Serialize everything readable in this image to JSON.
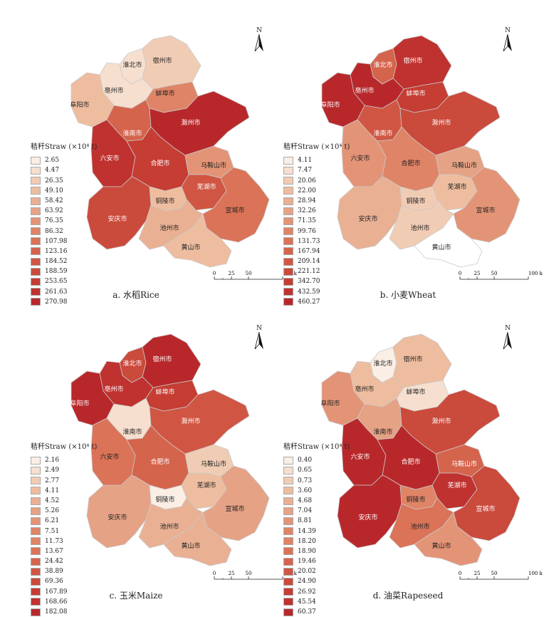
{
  "legend_title": "秸秆Straw (×10⁴ t)",
  "scale_labels": [
    "0",
    "25",
    "50",
    "100 km"
  ],
  "north_label": "N",
  "cities": [
    "淮北市",
    "宿州市",
    "亳州市",
    "蚌埠市",
    "阜阳市",
    "淮南市",
    "滁州市",
    "六安市",
    "合肥市",
    "马鞍山市",
    "芜湖市",
    "铜陵市",
    "宣城市",
    "安庆市",
    "池州市",
    "黄山市"
  ],
  "palette": [
    "#faeee5",
    "#f6dfcf",
    "#f1ccb4",
    "#eebd9f",
    "#eab093",
    "#e6a285",
    "#e49476",
    "#df8466",
    "#db7358",
    "#d5644c",
    "#d05643",
    "#ca4a3c",
    "#c53d33",
    "#bf3230",
    "#b8282b"
  ],
  "maps": [
    {
      "caption": "a. 水稻Rice",
      "legend": [
        "2.65",
        "4.47",
        "26.35",
        "49.10",
        "58.42",
        "63.92",
        "76.35",
        "86.32",
        "107.98",
        "123.16",
        "184.52",
        "188.59",
        "253.65",
        "261.63",
        "270.98"
      ],
      "city_class": {
        "淮北市": 1,
        "宿州市": 2,
        "亳州市": 1,
        "蚌埠市": 7,
        "阜阳市": 3,
        "淮南市": 9,
        "滁州市": 14,
        "六安市": 13,
        "合肥市": 12,
        "马鞍山市": 6,
        "芜湖市": 10,
        "铜陵市": 3,
        "宣城市": 8,
        "安庆市": 11,
        "池州市": 4,
        "黄山市": 3
      }
    },
    {
      "caption": "b. 小麦Wheat",
      "legend": [
        "4.11",
        "7.47",
        "20.06",
        "22.00",
        "28.94",
        "32.26",
        "71.35",
        "99.76",
        "131.73",
        "167.94",
        "209.14",
        "221.12",
        "342.70",
        "432.59",
        "460.27"
      ],
      "city_class": {
        "淮北市": 9,
        "宿州市": 13,
        "亳州市": 14,
        "蚌埠市": 12,
        "阜阳市": 14,
        "淮南市": 10,
        "滁州市": 11,
        "六安市": 6,
        "合肥市": 7,
        "马鞍山市": 5,
        "芜湖市": 3,
        "铜陵市": 2,
        "宣城市": 6,
        "安庆市": 4,
        "池州市": 2,
        "黄山市": 0
      }
    },
    {
      "caption": "c. 玉米Maize",
      "legend": [
        "2.16",
        "2.49",
        "2.77",
        "4.11",
        "4.52",
        "5.26",
        "6.21",
        "7.51",
        "11.73",
        "13.67",
        "24.42",
        "38.89",
        "69.36",
        "167.89",
        "168.66",
        "182.08"
      ],
      "city_class": {
        "淮北市": 11,
        "宿州市": 14,
        "亳州市": 13,
        "蚌埠市": 12,
        "阜阳市": 14,
        "淮南市": 1,
        "滁州市": 10,
        "六安市": 8,
        "合肥市": 9,
        "马鞍山市": 2,
        "芜湖市": 3,
        "铜陵市": 0,
        "宣城市": 5,
        "安庆市": 5,
        "池州市": 4,
        "黄山市": 4
      }
    },
    {
      "caption": "d. 油菜Rapeseed",
      "legend": [
        "0.40",
        "0.65",
        "0.73",
        "3.60",
        "4.68",
        "7.04",
        "8.81",
        "14.39",
        "18.20",
        "18.90",
        "19.46",
        "20.02",
        "24.90",
        "26.92",
        "45.54",
        "60.37"
      ],
      "city_class": {
        "淮北市": 0,
        "宿州市": 3,
        "亳州市": 3,
        "蚌埠市": 1,
        "阜阳市": 6,
        "淮南市": 5,
        "滁州市": 11,
        "六安市": 14,
        "合肥市": 14,
        "马鞍山市": 9,
        "芜湖市": 13,
        "铜陵市": 7,
        "宣城市": 11,
        "安庆市": 14,
        "池州市": 8,
        "黄山市": 6
      }
    }
  ]
}
